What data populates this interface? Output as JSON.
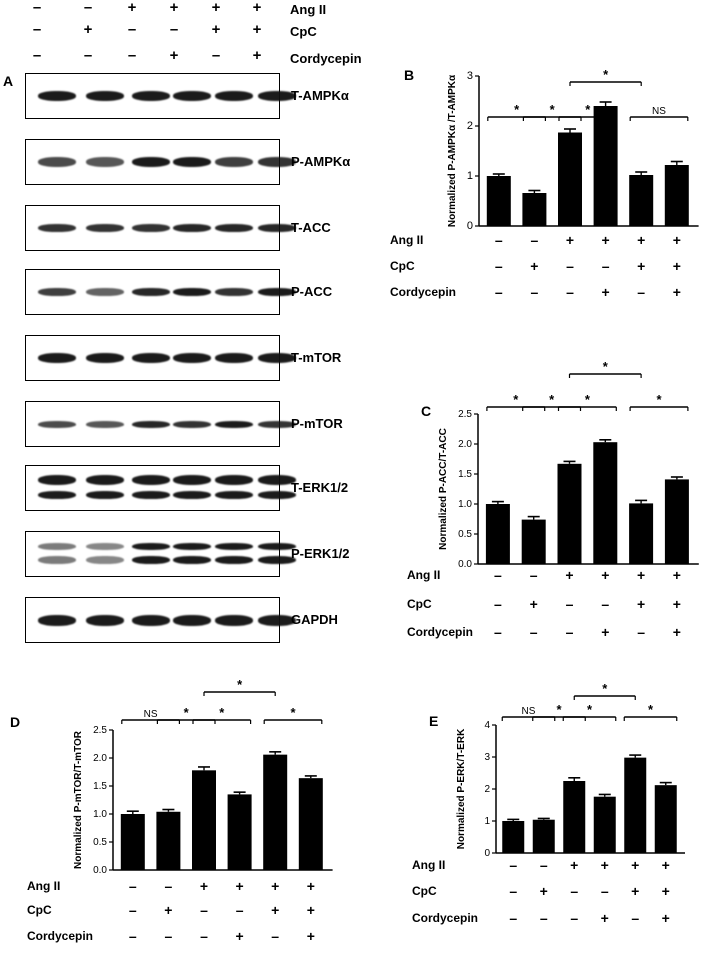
{
  "treatment_rows": {
    "top": [
      {
        "label": "Ang II",
        "signs": [
          "–",
          "–",
          "+",
          "+",
          "+",
          "+"
        ]
      },
      {
        "label": "CpC",
        "signs": [
          "–",
          "+",
          "–",
          "–",
          "+",
          "+"
        ]
      },
      {
        "label": "Cordycepin",
        "signs": [
          "–",
          "–",
          "–",
          "+",
          "–",
          "+"
        ]
      }
    ]
  },
  "panel_letters": {
    "a": "A",
    "b": "B",
    "c": "C",
    "d": "D",
    "e": "E"
  },
  "blots": [
    {
      "label": "T-AMPKα"
    },
    {
      "label": "P-AMPKα"
    },
    {
      "label": "T-ACC"
    },
    {
      "label": "P-ACC"
    },
    {
      "label": "T-mTOR"
    },
    {
      "label": "P-mTOR"
    },
    {
      "label": "T-ERK1/2"
    },
    {
      "label": "P-ERK1/2"
    },
    {
      "label": "GAPDH"
    }
  ],
  "chart_data": [
    {
      "panel": "B",
      "type": "bar",
      "ylabel": "Normalized P-AMPKα /T-AMPKα",
      "ylim": [
        0,
        3
      ],
      "yticks": [
        "0",
        "1",
        "2",
        "3"
      ],
      "values": [
        1.0,
        0.66,
        1.87,
        2.4,
        1.02,
        1.22
      ],
      "errors": [
        0.04,
        0.05,
        0.07,
        0.08,
        0.06,
        0.07
      ],
      "treatments": [
        {
          "label": "Ang II",
          "signs": [
            "–",
            "–",
            "+",
            "+",
            "+",
            "+"
          ]
        },
        {
          "label": "CpC",
          "signs": [
            "–",
            "+",
            "–",
            "–",
            "+",
            "+"
          ]
        },
        {
          "label": "Cordycepin",
          "signs": [
            "–",
            "–",
            "–",
            "+",
            "–",
            "+"
          ]
        }
      ],
      "comparisons": [
        {
          "bars": [
            1,
            2
          ],
          "text": "*"
        },
        {
          "bars": [
            2,
            3
          ],
          "text": "*"
        },
        {
          "bars": [
            3,
            4
          ],
          "text": "*"
        },
        {
          "bars": [
            3,
            5
          ],
          "text": "*",
          "level": 2
        },
        {
          "bars": [
            5,
            6
          ],
          "text": "NS"
        }
      ]
    },
    {
      "panel": "C",
      "type": "bar",
      "ylabel": "Normalized P-ACC/T-ACC",
      "ylim": [
        0,
        2.5
      ],
      "yticks": [
        "0.0",
        "0.5",
        "1.0",
        "1.5",
        "2.0",
        "2.5"
      ],
      "values": [
        1.0,
        0.74,
        1.67,
        2.03,
        1.01,
        1.41
      ],
      "errors": [
        0.04,
        0.05,
        0.04,
        0.04,
        0.05,
        0.04
      ],
      "treatments": [
        {
          "label": "Ang II",
          "signs": [
            "–",
            "–",
            "+",
            "+",
            "+",
            "+"
          ]
        },
        {
          "label": "CpC",
          "signs": [
            "–",
            "+",
            "–",
            "–",
            "+",
            "+"
          ]
        },
        {
          "label": "Cordycepin",
          "signs": [
            "–",
            "–",
            "–",
            "+",
            "–",
            "+"
          ]
        }
      ],
      "comparisons": [
        {
          "bars": [
            1,
            2
          ],
          "text": "*"
        },
        {
          "bars": [
            2,
            3
          ],
          "text": "*"
        },
        {
          "bars": [
            3,
            4
          ],
          "text": "*"
        },
        {
          "bars": [
            3,
            5
          ],
          "text": "*",
          "level": 2
        },
        {
          "bars": [
            5,
            6
          ],
          "text": "*"
        }
      ]
    },
    {
      "panel": "D",
      "type": "bar",
      "ylabel": "Normalized P-mTOR/T-mTOR",
      "ylim": [
        0,
        2.5
      ],
      "yticks": [
        "0.0",
        "0.5",
        "1.0",
        "1.5",
        "2.0",
        "2.5"
      ],
      "values": [
        1.0,
        1.04,
        1.78,
        1.35,
        2.06,
        1.64
      ],
      "errors": [
        0.05,
        0.04,
        0.06,
        0.04,
        0.05,
        0.04
      ],
      "treatments": [
        {
          "label": "Ang II",
          "signs": [
            "–",
            "–",
            "+",
            "+",
            "+",
            "+"
          ]
        },
        {
          "label": "CpC",
          "signs": [
            "–",
            "+",
            "–",
            "–",
            "+",
            "+"
          ]
        },
        {
          "label": "Cordycepin",
          "signs": [
            "–",
            "–",
            "–",
            "+",
            "–",
            "+"
          ]
        }
      ],
      "comparisons": [
        {
          "bars": [
            1,
            2
          ],
          "text": "NS"
        },
        {
          "bars": [
            2,
            3
          ],
          "text": "*"
        },
        {
          "bars": [
            3,
            4
          ],
          "text": "*"
        },
        {
          "bars": [
            3,
            5
          ],
          "text": "*",
          "level": 2
        },
        {
          "bars": [
            5,
            6
          ],
          "text": "*"
        }
      ]
    },
    {
      "panel": "E",
      "type": "bar",
      "ylabel": "Normalized P-ERK/T-ERK",
      "ylim": [
        0,
        4
      ],
      "yticks": [
        "0",
        "1",
        "2",
        "3",
        "4"
      ],
      "values": [
        1.0,
        1.04,
        2.25,
        1.76,
        2.98,
        2.12
      ],
      "errors": [
        0.05,
        0.04,
        0.1,
        0.07,
        0.08,
        0.08
      ],
      "treatments": [
        {
          "label": "Ang II",
          "signs": [
            "–",
            "–",
            "+",
            "+",
            "+",
            "+"
          ]
        },
        {
          "label": "CpC",
          "signs": [
            "–",
            "+",
            "–",
            "–",
            "+",
            "+"
          ]
        },
        {
          "label": "Cordycepin",
          "signs": [
            "–",
            "–",
            "–",
            "+",
            "–",
            "+"
          ]
        }
      ],
      "comparisons": [
        {
          "bars": [
            1,
            2
          ],
          "text": "NS"
        },
        {
          "bars": [
            2,
            3
          ],
          "text": "*"
        },
        {
          "bars": [
            3,
            4
          ],
          "text": "*"
        },
        {
          "bars": [
            3,
            5
          ],
          "text": "*",
          "level": 2
        },
        {
          "bars": [
            5,
            6
          ],
          "text": "*"
        }
      ]
    }
  ]
}
